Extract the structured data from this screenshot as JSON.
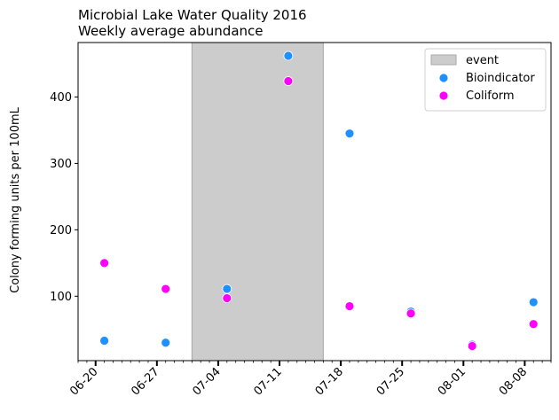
{
  "chart_data": {
    "type": "scatter",
    "title": "Microbial Lake Water Quality 2016",
    "subtitle": "Weekly average abundance",
    "xlabel": "",
    "ylabel": "Colony forming units per 100mL",
    "xlim": [
      "2016-06-18",
      "2016-08-11"
    ],
    "ylim": [
      3,
      482
    ],
    "x_tick_labels": [
      "06-20",
      "06-27",
      "07-04",
      "07-11",
      "07-18",
      "07-25",
      "08-01",
      "08-08"
    ],
    "x_ticks": [
      "2016-06-20",
      "2016-06-27",
      "2016-07-04",
      "2016-07-11",
      "2016-07-18",
      "2016-07-25",
      "2016-08-01",
      "2016-08-08"
    ],
    "y_ticks": [
      100,
      200,
      300,
      400
    ],
    "y_tick_labels": [
      "100",
      "200",
      "300",
      "400"
    ],
    "grid": false,
    "legend_position": "top-right",
    "event": {
      "label": "event",
      "start": "2016-07-01",
      "end": "2016-07-16",
      "color": "#cccccc"
    },
    "series": [
      {
        "name": "Bioindicator",
        "color": "#1e90ff",
        "points": [
          {
            "x": "2016-06-21",
            "y": 33
          },
          {
            "x": "2016-06-28",
            "y": 30
          },
          {
            "x": "2016-07-05",
            "y": 111
          },
          {
            "x": "2016-07-12",
            "y": 462
          },
          {
            "x": "2016-07-19",
            "y": 345
          },
          {
            "x": "2016-07-26",
            "y": 77
          },
          {
            "x": "2016-08-02",
            "y": 27
          },
          {
            "x": "2016-08-09",
            "y": 91
          }
        ]
      },
      {
        "name": "Coliform",
        "color": "#ff00ff",
        "points": [
          {
            "x": "2016-06-21",
            "y": 150
          },
          {
            "x": "2016-06-28",
            "y": 111
          },
          {
            "x": "2016-07-05",
            "y": 97
          },
          {
            "x": "2016-07-12",
            "y": 424
          },
          {
            "x": "2016-07-19",
            "y": 85
          },
          {
            "x": "2016-07-26",
            "y": 74
          },
          {
            "x": "2016-08-02",
            "y": 25
          },
          {
            "x": "2016-08-09",
            "y": 58
          }
        ]
      }
    ]
  }
}
